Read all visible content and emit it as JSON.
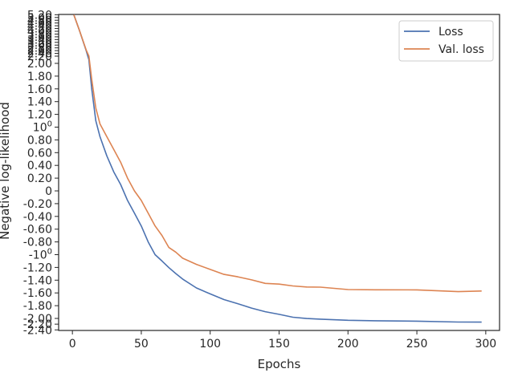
{
  "chart_data": {
    "type": "line",
    "title": "",
    "xlabel": "Epochs",
    "ylabel": "Negative log-likelihood",
    "xlim": [
      -10,
      310
    ],
    "ylim": [
      -2.42,
      5.22
    ],
    "y_scale": "symlog",
    "grid": false,
    "legend_position": "top-right",
    "xticks": [
      {
        "value": 0,
        "label": "0"
      },
      {
        "value": 50,
        "label": "50"
      },
      {
        "value": 100,
        "label": "100"
      },
      {
        "value": 150,
        "label": "150"
      },
      {
        "value": 200,
        "label": "200"
      },
      {
        "value": 250,
        "label": "250"
      },
      {
        "value": 300,
        "label": "300"
      }
    ],
    "yticks_upper": [
      {
        "value": 5.2,
        "label": "5.20"
      },
      {
        "value": 5.0,
        "label": "5.00"
      },
      {
        "value": 4.8,
        "label": "4.80"
      },
      {
        "value": 4.6,
        "label": "4.60"
      },
      {
        "value": 4.4,
        "label": "4.40"
      },
      {
        "value": 4.2,
        "label": "4.20"
      },
      {
        "value": 4.0,
        "label": "4.00"
      },
      {
        "value": 3.8,
        "label": "3.80"
      },
      {
        "value": 3.6,
        "label": "3.60"
      },
      {
        "value": 3.4,
        "label": "3.40"
      },
      {
        "value": 3.2,
        "label": "3.20"
      },
      {
        "value": 3.0,
        "label": "3.00"
      },
      {
        "value": 2.8,
        "label": "2.80"
      },
      {
        "value": 2.6,
        "label": "2.60"
      },
      {
        "value": 2.4,
        "label": "2.40"
      },
      {
        "value": 2.2,
        "label": "2.20"
      }
    ],
    "yticks_main": [
      {
        "value": 2.0,
        "label": "2.00"
      },
      {
        "value": 1.8,
        "label": "1.80"
      },
      {
        "value": 1.6,
        "label": "1.60"
      },
      {
        "value": 1.4,
        "label": "1.40"
      },
      {
        "value": 1.2,
        "label": "1.20"
      },
      {
        "value": 1.0,
        "label": "10",
        "sup": "0"
      },
      {
        "value": 0.8,
        "label": "0.80"
      },
      {
        "value": 0.6,
        "label": "0.60"
      },
      {
        "value": 0.4,
        "label": "0.40"
      },
      {
        "value": 0.2,
        "label": "0.20"
      },
      {
        "value": 0.0,
        "label": "0"
      },
      {
        "value": -0.2,
        "label": "-0.20"
      },
      {
        "value": -0.4,
        "label": "-0.40"
      },
      {
        "value": -0.6,
        "label": "-0.60"
      },
      {
        "value": -0.8,
        "label": "-0.80"
      },
      {
        "value": -1.0,
        "label": "-10",
        "sup": "0"
      },
      {
        "value": -1.2,
        "label": "-1.20"
      },
      {
        "value": -1.4,
        "label": "-1.40"
      },
      {
        "value": -1.6,
        "label": "-1.60"
      },
      {
        "value": -1.8,
        "label": "-1.80"
      },
      {
        "value": -2.0,
        "label": "-2.00"
      }
    ],
    "yticks_lower": [
      {
        "value": -2.2,
        "label": "-2.20"
      },
      {
        "value": -2.4,
        "label": "-2.40"
      }
    ],
    "series": [
      {
        "name": "Loss",
        "color": "#4c72b0",
        "x": [
          1,
          5,
          10,
          12,
          14,
          17,
          20,
          25,
          30,
          35,
          40,
          45,
          50,
          55,
          60,
          65,
          70,
          75,
          80,
          90,
          100,
          110,
          120,
          130,
          140,
          150,
          160,
          170,
          180,
          200,
          220,
          250,
          280,
          297
        ],
        "y": [
          5.2,
          4.1,
          2.6,
          2.1,
          1.6,
          1.1,
          0.85,
          0.55,
          0.3,
          0.1,
          -0.15,
          -0.35,
          -0.55,
          -0.8,
          -1.0,
          -1.1,
          -1.2,
          -1.3,
          -1.38,
          -1.52,
          -1.62,
          -1.7,
          -1.77,
          -1.84,
          -1.89,
          -1.94,
          -1.98,
          -2.0,
          -2.03,
          -2.06,
          -2.08,
          -2.1,
          -2.12,
          -2.13
        ]
      },
      {
        "name": "Val. loss",
        "color": "#dd8452",
        "x": [
          1,
          5,
          10,
          12,
          14,
          17,
          20,
          25,
          30,
          35,
          40,
          45,
          50,
          55,
          60,
          65,
          70,
          75,
          80,
          90,
          100,
          110,
          120,
          130,
          140,
          150,
          160,
          170,
          180,
          200,
          220,
          250,
          280,
          297
        ],
        "y": [
          5.2,
          4.1,
          2.65,
          2.2,
          1.75,
          1.3,
          1.05,
          0.85,
          0.65,
          0.45,
          0.2,
          0.0,
          -0.15,
          -0.35,
          -0.55,
          -0.7,
          -0.88,
          -0.97,
          -1.05,
          -1.15,
          -1.24,
          -1.3,
          -1.35,
          -1.4,
          -1.44,
          -1.47,
          -1.49,
          -1.5,
          -1.52,
          -1.54,
          -1.55,
          -1.56,
          -1.57,
          -1.57
        ]
      }
    ]
  }
}
